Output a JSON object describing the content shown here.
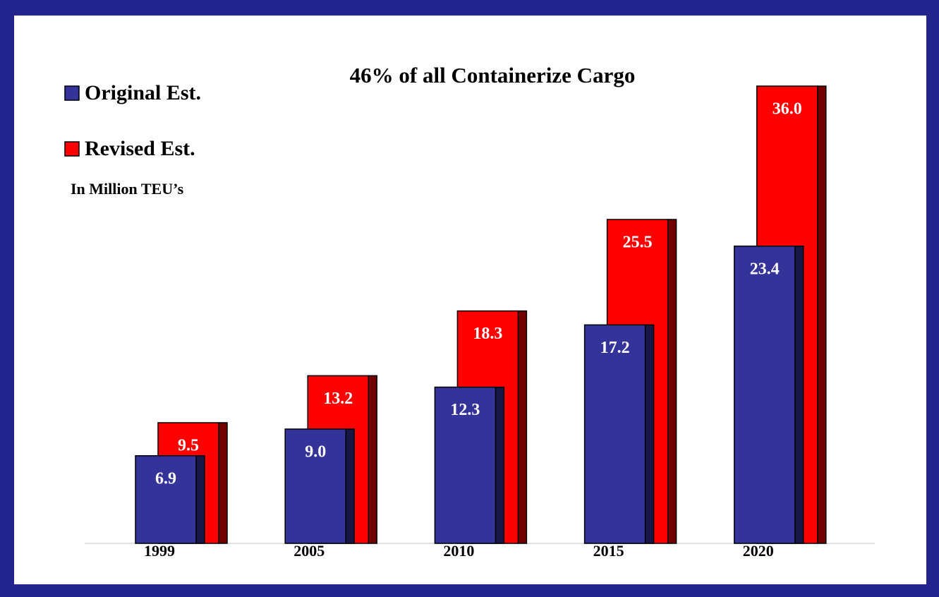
{
  "chart_data": {
    "type": "bar3d",
    "title": "46% of all Containerize Cargo",
    "subtitle": "In Million TEU’s",
    "categories": [
      "1999",
      "2005",
      "2010",
      "2015",
      "2020"
    ],
    "series": [
      {
        "name": "Original Est.",
        "color": "#333399",
        "values": [
          6.9,
          9.0,
          12.3,
          17.2,
          23.4
        ],
        "value_labels": [
          "6.9",
          "9.0",
          "12.3",
          "17.2",
          "23.4"
        ]
      },
      {
        "name": "Revised Est.",
        "color": "#ff0000",
        "values": [
          9.5,
          13.2,
          18.3,
          25.5,
          36.0
        ],
        "value_labels": [
          "9.5",
          "13.2",
          "18.3",
          "25.5",
          "36.0"
        ]
      }
    ],
    "legend": "top-left"
  }
}
